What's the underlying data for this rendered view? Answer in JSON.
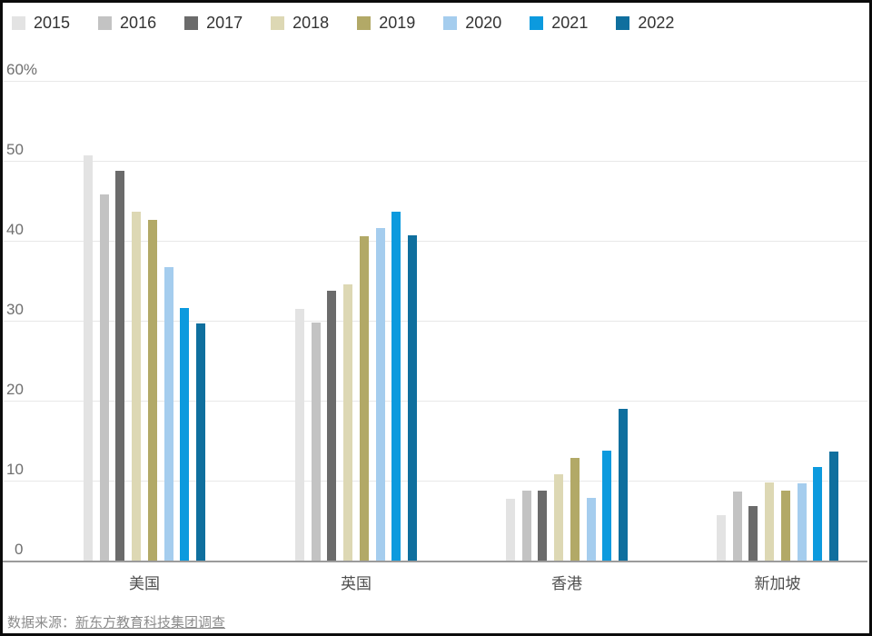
{
  "y_axis": {
    "labels": [
      {
        "text": "60%",
        "value": 60
      },
      {
        "text": "50",
        "value": 50
      },
      {
        "text": "40",
        "value": 40
      },
      {
        "text": "30",
        "value": 30
      },
      {
        "text": "20",
        "value": 20
      },
      {
        "text": "10",
        "value": 10
      },
      {
        "text": "0",
        "value": 0
      }
    ]
  },
  "chart_data": {
    "type": "bar",
    "title": "",
    "categories": [
      "美国",
      "英国",
      "香港",
      "新加坡"
    ],
    "series": [
      {
        "name": "2015",
        "color": "#e3e3e3",
        "values": [
          50.7,
          31.5,
          7.7,
          5.7
        ]
      },
      {
        "name": "2016",
        "color": "#c3c3c3",
        "values": [
          45.8,
          29.8,
          8.8,
          8.6
        ]
      },
      {
        "name": "2017",
        "color": "#6b6b6b",
        "values": [
          48.8,
          33.7,
          8.8,
          6.8
        ]
      },
      {
        "name": "2018",
        "color": "#ddd8b4",
        "values": [
          43.6,
          34.6,
          10.8,
          9.8
        ]
      },
      {
        "name": "2019",
        "color": "#b2a967",
        "values": [
          42.6,
          40.6,
          12.8,
          8.7
        ]
      },
      {
        "name": "2020",
        "color": "#a5cdee",
        "values": [
          36.7,
          41.6,
          7.8,
          9.7
        ]
      },
      {
        "name": "2021",
        "color": "#0c9ade",
        "values": [
          31.6,
          43.6,
          13.8,
          11.7
        ]
      },
      {
        "name": "2022",
        "color": "#0f6f9e",
        "values": [
          29.7,
          40.7,
          19.0,
          13.6
        ]
      }
    ],
    "ylim": [
      0,
      60
    ],
    "ylabel": "",
    "grid": true,
    "legend_position": "top"
  },
  "source": {
    "prefix": "数据来源：",
    "link_text": "新东方教育科技集团调查"
  }
}
